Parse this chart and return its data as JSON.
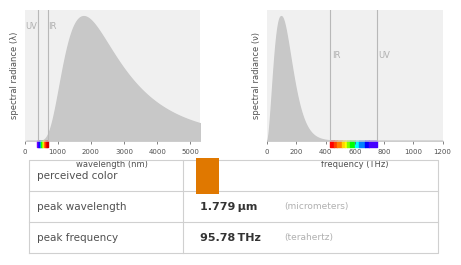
{
  "title": "",
  "perceived_color": "#e07800",
  "peak_wavelength_val": "1.779",
  "peak_wavelength_unit": "μm",
  "peak_wavelength_sub": "(micrometers)",
  "peak_frequency_val": "95.78",
  "peak_frequency_unit": "THz",
  "peak_frequency_sub": "(terahertz)",
  "row_labels": [
    "perceived color",
    "peak wavelength",
    "peak frequency"
  ],
  "left_plot": {
    "xlabel": "wavelength (nm)",
    "ylabel": "spectral radiance (λ)",
    "xlim": [
      0,
      5300
    ],
    "ylim": [
      0,
      1
    ],
    "peak_nm": 1779,
    "uv_line_nm": 400,
    "ir_line_nm": 700,
    "uv_label": "UV",
    "ir_label": "IR",
    "xticks": [
      0,
      1000,
      2000,
      3000,
      4000,
      5000
    ]
  },
  "right_plot": {
    "xlabel": "frequency (THz)",
    "ylabel": "spectral radiance (ν)",
    "xlim": [
      0,
      1200
    ],
    "ylim": [
      0,
      1
    ],
    "peak_thz": 95.78,
    "uv_line_thz": 750,
    "ir_line_thz": 430,
    "uv_label": "UV",
    "ir_label": "IR",
    "xticks": [
      0,
      200,
      400,
      600,
      800,
      1000,
      1200
    ]
  },
  "bg_color": "#ffffff",
  "plot_bg": "#f0f0f0",
  "curve_color": "#c8c8c8",
  "line_color": "#b8b8b8",
  "label_color": "#b0b0b0",
  "table_line_color": "#d0d0d0",
  "text_color": "#505050"
}
